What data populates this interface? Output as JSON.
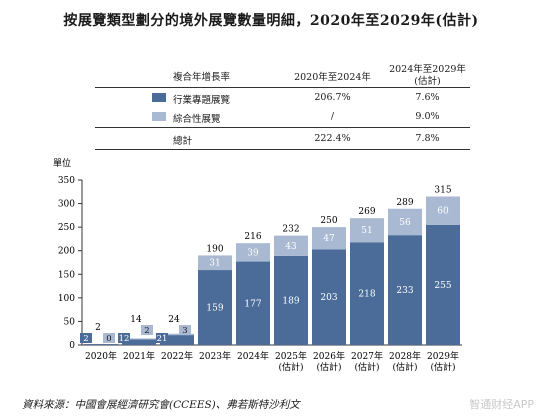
{
  "title": "按展覽類型劃分的境外展覽數量明細，2020年至2029年(估計)",
  "cagr_table": {
    "header": {
      "label": "複合年增長率",
      "col1": "2020年至2024年",
      "col2_line1": "2024年至2029年",
      "col2_line2": "(估計)"
    },
    "rows": [
      {
        "label": "行業專題展覽",
        "col1": "206.7%",
        "col2": "7.6%",
        "color": "#4b6c99"
      },
      {
        "label": "綜合性展覽",
        "col1": "/",
        "col2": "9.0%",
        "color": "#a9b9d2"
      },
      {
        "label": "總計",
        "col1": "222.4%",
        "col2": "7.8%"
      }
    ]
  },
  "chart_data": {
    "type": "bar",
    "stacked": true,
    "ylabel": "單位",
    "ylim": [
      0,
      350
    ],
    "yticks": [
      0,
      50,
      100,
      150,
      200,
      250,
      300,
      350
    ],
    "grid": false,
    "categories": [
      [
        "2020年"
      ],
      [
        "2021年"
      ],
      [
        "2022年"
      ],
      [
        "2023年"
      ],
      [
        "2024年"
      ],
      [
        "2025年",
        "(估計)"
      ],
      [
        "2026年",
        "(估計)"
      ],
      [
        "2027年",
        "(估計)"
      ],
      [
        "2028年",
        "(估計)"
      ],
      [
        "2029年",
        "(估計)"
      ]
    ],
    "series": [
      {
        "name": "行業專題展覽",
        "color": "#4b6c99",
        "values": [
          2,
          12,
          21,
          159,
          177,
          189,
          203,
          218,
          233,
          255
        ]
      },
      {
        "name": "綜合性展覽",
        "color": "#a9b9d2",
        "values": [
          0,
          2,
          3,
          31,
          39,
          43,
          47,
          51,
          56,
          60
        ]
      }
    ],
    "totals": [
      2,
      14,
      24,
      190,
      216,
      232,
      250,
      269,
      289,
      315
    ]
  },
  "source": "資料來源：中國會展經濟研究會(CCEES)、弗若斯特沙利文",
  "watermark": "智通财经APP"
}
